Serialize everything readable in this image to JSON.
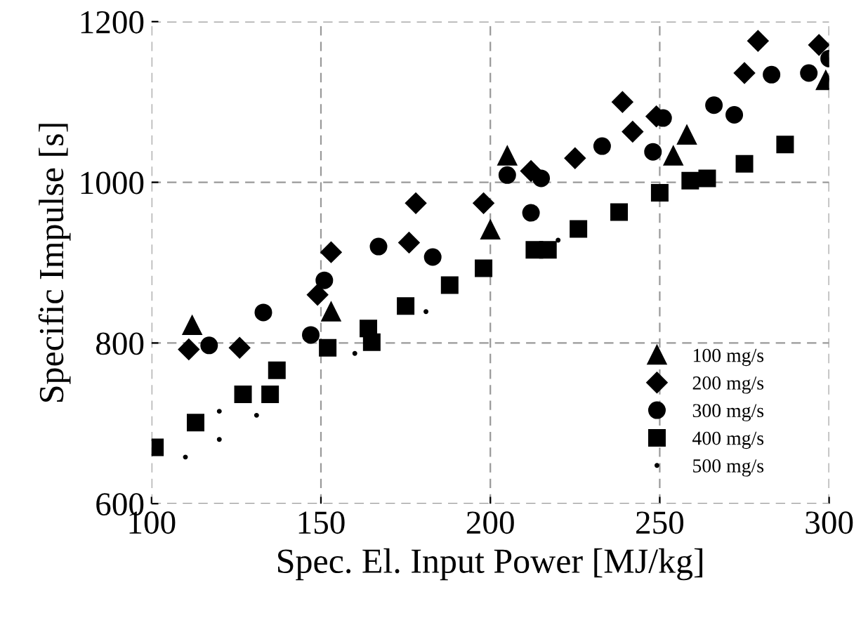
{
  "chart_data": {
    "type": "scatter",
    "xlabel": "Spec. El. Input Power [MJ/kg]",
    "ylabel": "Specific Impulse [s]",
    "xlim": [
      100,
      300
    ],
    "ylim": [
      600,
      1200
    ],
    "xticks": [
      100,
      150,
      200,
      250,
      300
    ],
    "yticks": [
      600,
      800,
      1000,
      1200
    ],
    "grid": true,
    "legend": "bottom right",
    "series": [
      {
        "name": "100 mg/s",
        "color": "#000000",
        "marker": "triangle",
        "x": [
          112,
          153,
          200,
          205,
          254,
          258,
          299
        ],
        "values": [
          822,
          839,
          941,
          1033,
          1033,
          1059,
          1127
        ]
      },
      {
        "name": "200 mg/s",
        "color": "#000000",
        "marker": "diamond",
        "x": [
          111,
          126,
          149,
          153,
          176,
          178,
          198,
          212,
          225,
          239,
          242,
          249,
          275,
          279,
          297
        ],
        "values": [
          792,
          794,
          860,
          913,
          925,
          974,
          974,
          1014,
          1030,
          1100,
          1063,
          1082,
          1136,
          1176,
          1171
        ]
      },
      {
        "name": "300 mg/s",
        "color": "#000000",
        "marker": "circle",
        "x": [
          117,
          133,
          147,
          151,
          167,
          183,
          205,
          215,
          212,
          233,
          248,
          251,
          266,
          272,
          283,
          294,
          300
        ],
        "values": [
          797,
          838,
          810,
          878,
          920,
          907,
          1009,
          1005,
          962,
          1045,
          1038,
          1080,
          1096,
          1084,
          1134,
          1136,
          1154
        ]
      },
      {
        "name": "400 mg/s",
        "color": "#000000",
        "marker": "square",
        "x": [
          101,
          113,
          127,
          135,
          137,
          152,
          164,
          165,
          175,
          188,
          198,
          213,
          217,
          226,
          238,
          250,
          259,
          264,
          275,
          287
        ],
        "values": [
          670,
          701,
          736,
          736,
          766,
          794,
          818,
          801,
          846,
          872,
          893,
          916,
          916,
          942,
          963,
          987,
          1002,
          1005,
          1023,
          1047
        ]
      },
      {
        "name": "500 mg/s",
        "color": "#000000",
        "marker": "point",
        "x": [
          110,
          120,
          120,
          131,
          160,
          181,
          220
        ],
        "values": [
          658,
          680,
          715,
          710,
          787,
          839,
          928
        ]
      }
    ]
  }
}
